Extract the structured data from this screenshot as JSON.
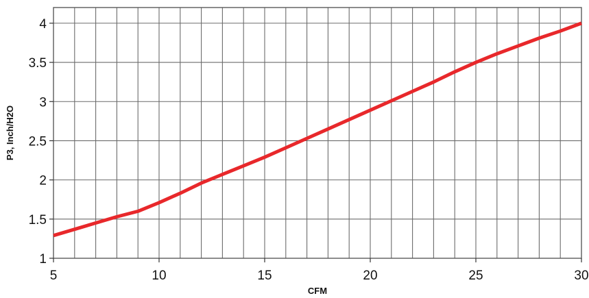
{
  "chart_data": {
    "type": "line",
    "title": "",
    "xlabel": "CFM",
    "ylabel": "P3, Inch/H2O",
    "xlim": [
      5,
      30
    ],
    "ylim": [
      1,
      4.2
    ],
    "x_ticks": [
      5,
      10,
      15,
      20,
      25,
      30
    ],
    "y_ticks": [
      1,
      1.5,
      2,
      2.5,
      3,
      3.5,
      4
    ],
    "x_tick_labels": [
      "5",
      "10",
      "15",
      "20",
      "25",
      "30"
    ],
    "y_tick_labels": [
      "1",
      "1.5",
      "2",
      "2.5",
      "3",
      "3.5",
      "4"
    ],
    "x_grid_step": 1,
    "y_grid_step": 0.5,
    "grid": true,
    "series": [
      {
        "color": "#e8282b",
        "x": [
          5,
          6,
          7,
          8,
          9,
          10,
          11,
          12,
          13,
          14,
          15,
          16,
          17,
          18,
          19,
          20,
          21,
          22,
          23,
          24,
          25,
          26,
          27,
          28,
          29,
          30
        ],
        "y": [
          1.29,
          1.37,
          1.45,
          1.53,
          1.6,
          1.71,
          1.83,
          1.96,
          2.07,
          2.18,
          2.29,
          2.41,
          2.53,
          2.65,
          2.77,
          2.89,
          3.01,
          3.13,
          3.25,
          3.38,
          3.5,
          3.61,
          3.71,
          3.81,
          3.9,
          4.0
        ]
      }
    ]
  }
}
